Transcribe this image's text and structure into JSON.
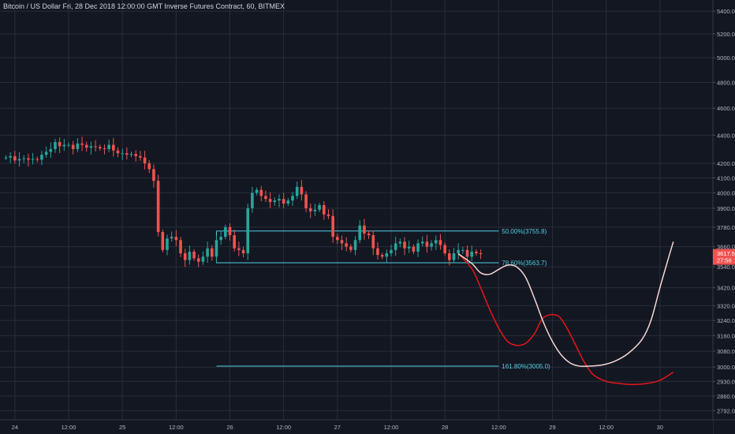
{
  "title": "Bitcoin / US Dollar Fri, 28 Dec 2018 12:00:00 GMT Inverse Futures Contract, 60, BITMEX",
  "colors": {
    "background": "#131722",
    "grid": "#2a2e39",
    "text": "#b2b5be",
    "up": "#26a69a",
    "down": "#ef5350",
    "fib": "#4dd0e1",
    "projection_red": "#e8151b",
    "projection_pink": "#f6d6d6",
    "price_tag": "#ef5350"
  },
  "chart_data": {
    "type": "candlestick",
    "symbol": "BTCUSD",
    "exchange": "BITMEX",
    "interval": "60",
    "y_scale": "log",
    "ylim": [
      2750,
      5500
    ],
    "y_ticks": [
      5400,
      5200,
      5000,
      4800,
      4600,
      4400,
      4200,
      4100,
      4000,
      3900,
      3780,
      3660,
      3540,
      3420,
      3320,
      3240,
      3160,
      3080,
      3000,
      2930,
      2860,
      2792
    ],
    "y_tick_labels": [
      "5400.0",
      "5200.0",
      "5000.0",
      "4800.0",
      "4600.0",
      "4400.0",
      "4200.0",
      "4100.0",
      "4000.0",
      "3900.0",
      "3780.0",
      "3660.0",
      "3540.0",
      "3420.0",
      "3320.0",
      "3240.0",
      "3160.0",
      "3080.0",
      "3000.0",
      "2930.0",
      "2860.0",
      "2792.0"
    ],
    "x_ticks": [
      {
        "label": "24",
        "hour": 2
      },
      {
        "label": "12:00",
        "hour": 14
      },
      {
        "label": "25",
        "hour": 26
      },
      {
        "label": "12:00",
        "hour": 38
      },
      {
        "label": "26",
        "hour": 50
      },
      {
        "label": "12:00",
        "hour": 62
      },
      {
        "label": "27",
        "hour": 74
      },
      {
        "label": "12:00",
        "hour": 86
      },
      {
        "label": "28",
        "hour": 98
      },
      {
        "label": "12:00",
        "hour": 110
      },
      {
        "label": "29",
        "hour": 122
      },
      {
        "label": "12:00",
        "hour": 134
      },
      {
        "label": "30",
        "hour": 146
      }
    ],
    "candles_close": [
      4240,
      4250,
      4220,
      4230,
      4235,
      4225,
      4230,
      4225,
      4260,
      4280,
      4300,
      4350,
      4320,
      4330,
      4330,
      4300,
      4340,
      4330,
      4310,
      4320,
      4315,
      4305,
      4300,
      4330,
      4290,
      4270,
      4270,
      4260,
      4265,
      4250,
      4240,
      4200,
      4160,
      4080,
      3750,
      3640,
      3710,
      3720,
      3700,
      3620,
      3580,
      3630,
      3590,
      3570,
      3600,
      3650,
      3600,
      3700,
      3720,
      3780,
      3730,
      3650,
      3640,
      3620,
      3900,
      4000,
      4020,
      3980,
      3960,
      3940,
      3950,
      3960,
      3930,
      3950,
      3980,
      4040,
      3990,
      3900,
      3880,
      3890,
      3920,
      3860,
      3850,
      3720,
      3700,
      3680,
      3660,
      3640,
      3700,
      3790,
      3740,
      3730,
      3650,
      3610,
      3600,
      3620,
      3640,
      3680,
      3690,
      3650,
      3660,
      3630,
      3680,
      3690,
      3660,
      3680,
      3700,
      3670,
      3620,
      3580,
      3620,
      3640,
      3640,
      3600,
      3630,
      3620,
      3617.5
    ],
    "fib_levels": [
      {
        "label": "50.00%(3755.8)",
        "value": 3755.8,
        "start_hour": 47,
        "end_hour": 110
      },
      {
        "label": "78.60%(3563.7)",
        "value": 3563.7,
        "start_hour": 47,
        "end_hour": 110
      },
      {
        "label": "161.80%(3005.0)",
        "value": 3005.0,
        "start_hour": 47,
        "end_hour": 110
      }
    ],
    "projections": [
      {
        "color": "red",
        "points": [
          [
            101,
            3617
          ],
          [
            104,
            3530
          ],
          [
            106,
            3420
          ],
          [
            108,
            3300
          ],
          [
            110,
            3200
          ],
          [
            112,
            3130
          ],
          [
            114,
            3110
          ],
          [
            116,
            3120
          ],
          [
            118,
            3170
          ],
          [
            120,
            3255
          ],
          [
            123,
            3268
          ],
          [
            125,
            3210
          ],
          [
            127,
            3120
          ],
          [
            129,
            3030
          ],
          [
            131,
            2965
          ],
          [
            134,
            2930
          ],
          [
            137,
            2920
          ],
          [
            140,
            2915
          ],
          [
            143,
            2920
          ],
          [
            146,
            2935
          ],
          [
            149,
            2975
          ]
        ]
      },
      {
        "color": "pink",
        "points": [
          [
            101,
            3617
          ],
          [
            104,
            3560
          ],
          [
            106,
            3505
          ],
          [
            108,
            3497
          ],
          [
            110,
            3525
          ],
          [
            112,
            3550
          ],
          [
            114,
            3540
          ],
          [
            116,
            3480
          ],
          [
            118,
            3360
          ],
          [
            120,
            3230
          ],
          [
            122,
            3130
          ],
          [
            124,
            3060
          ],
          [
            126,
            3020
          ],
          [
            128,
            3005
          ],
          [
            130,
            3005
          ],
          [
            133,
            3010
          ],
          [
            136,
            3030
          ],
          [
            139,
            3070
          ],
          [
            142,
            3140
          ],
          [
            144,
            3240
          ],
          [
            146,
            3420
          ],
          [
            148,
            3600
          ],
          [
            149,
            3690
          ]
        ]
      }
    ],
    "last_price": "3617.5",
    "countdown": "27:56",
    "axis_labels": [
      "3660.0",
      "3540.0"
    ]
  }
}
